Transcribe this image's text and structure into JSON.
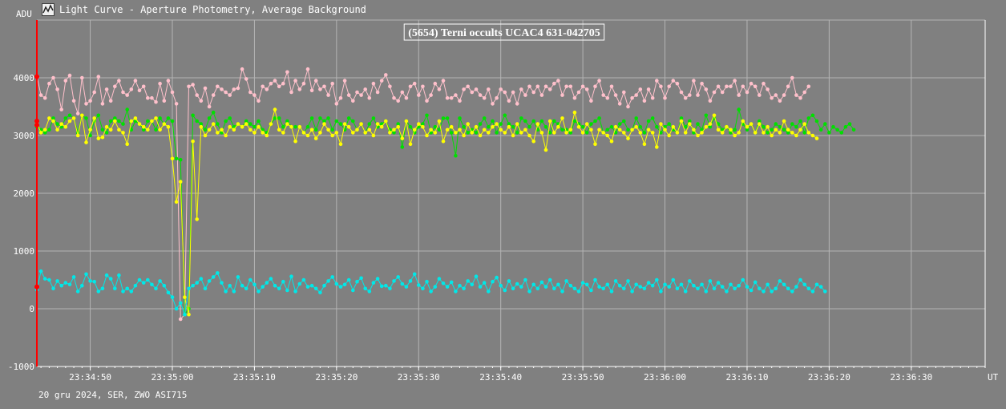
{
  "window": {
    "title": "Light Curve - Aperture Photometry, Average Background",
    "icon": "light-curve-app-icon"
  },
  "footer": {
    "text": "20 gru 2024, SER, ZWO ASI715"
  },
  "chart_data": {
    "type": "line",
    "title": "(5654) Terni occults UCAC4 631-042705",
    "ylabel": "ADU",
    "xlabel": "UT",
    "xlim": [
      "23:34:43.5",
      "23:36:39.0"
    ],
    "ylim": [
      -1000,
      5000
    ],
    "yticks": [
      -1000,
      0,
      1000,
      2000,
      3000,
      4000
    ],
    "xticks": [
      "23:34:50",
      "23:35:00",
      "23:35:10",
      "23:35:20",
      "23:35:30",
      "23:35:40",
      "23:35:50",
      "23:36:00",
      "23:36:10",
      "23:36:20",
      "23:36:30"
    ],
    "grid": true,
    "legend": "none",
    "frame_interval_s": 0.5,
    "start_time": "23:34:43.5",
    "colors": {
      "background": "#808080",
      "grid": "#b4b4b4",
      "marker_line": "#ff0000",
      "text": "#ffffff"
    },
    "series": [
      {
        "color": "#ffc0cb",
        "values": [
          4030,
          3700,
          3650,
          3900,
          4000,
          3800,
          3450,
          3950,
          4040,
          3600,
          3380,
          4000,
          3550,
          3600,
          3750,
          4020,
          3550,
          3800,
          3600,
          3850,
          3950,
          3750,
          3700,
          3800,
          3950,
          3780,
          3850,
          3650,
          3650,
          3580,
          3900,
          3600,
          3950,
          3750,
          3550,
          -180,
          -100,
          3850,
          3880,
          3700,
          3600,
          3820,
          3500,
          3700,
          3850,
          3800,
          3750,
          3700,
          3800,
          3820,
          4150,
          3980,
          3750,
          3700,
          3600,
          3850,
          3800,
          3900,
          3950,
          3850,
          3900,
          4100,
          3750,
          3950,
          3800,
          3900,
          4150,
          3780,
          3950,
          3800,
          3850,
          3700,
          3900,
          3550,
          3650,
          3950,
          3700,
          3600,
          3750,
          3700,
          3800,
          3650,
          3900,
          3750,
          3950,
          4050,
          3850,
          3650,
          3600,
          3750,
          3650,
          3850,
          3900,
          3700,
          3850,
          3600,
          3700,
          3900,
          3800,
          3950,
          3650,
          3650,
          3700,
          3600,
          3800,
          3850,
          3750,
          3800,
          3700,
          3650,
          3800,
          3550,
          3650,
          3800,
          3750,
          3600,
          3750,
          3550,
          3800,
          3700,
          3850,
          3750,
          3850,
          3700,
          3850,
          3800,
          3900,
          3950,
          3700,
          3850,
          3850,
          3650,
          3750,
          3850,
          3800,
          3600,
          3850,
          3950,
          3700,
          3650,
          3850,
          3700,
          3550,
          3750,
          3500,
          3650,
          3700,
          3800,
          3600,
          3800,
          3650,
          3950,
          3850,
          3650,
          3850,
          3950,
          3900,
          3750,
          3650,
          3700,
          3950,
          3700,
          3900,
          3800,
          3600,
          3750,
          3850,
          3750,
          3850,
          3850,
          3950,
          3700,
          3850,
          3750,
          3900,
          3850,
          3700,
          3900,
          3800,
          3650,
          3700,
          3600,
          3700,
          3850,
          4000,
          3700,
          3650,
          3750,
          3850
        ]
      },
      {
        "color": "#00e000",
        "values": [
          3150,
          3100,
          3050,
          3100,
          3300,
          3200,
          3150,
          3300,
          3350,
          3300,
          3050,
          3350,
          3300,
          3000,
          3250,
          3350,
          3100,
          3050,
          3250,
          3300,
          3250,
          3200,
          3450,
          3100,
          3250,
          3200,
          3100,
          3250,
          3250,
          3100,
          3300,
          3200,
          3300,
          3250,
          2600,
          2580,
          -100,
          0,
          3350,
          3250,
          3200,
          3100,
          3300,
          3400,
          3200,
          3050,
          3250,
          3300,
          3150,
          3200,
          3150,
          3250,
          3200,
          3150,
          3250,
          3100,
          3050,
          3200,
          3300,
          3300,
          3150,
          3250,
          3150,
          3150,
          3150,
          3050,
          3150,
          3300,
          3100,
          3300,
          3250,
          3300,
          3100,
          3250,
          3200,
          3100,
          3300,
          3250,
          3100,
          3200,
          3050,
          3200,
          3300,
          3150,
          3200,
          3250,
          3100,
          3050,
          3200,
          2800,
          3250,
          3150,
          3050,
          3150,
          3200,
          3350,
          3050,
          3150,
          3100,
          3300,
          3300,
          3050,
          2650,
          3300,
          3150,
          3050,
          3100,
          3050,
          3200,
          3300,
          3150,
          3250,
          3050,
          3200,
          3350,
          3200,
          3150,
          3050,
          3300,
          3250,
          3150,
          3250,
          3100,
          3250,
          3150,
          3050,
          3250,
          3200,
          3100,
          3100,
          3050,
          3250,
          3200,
          3150,
          3050,
          3200,
          3250,
          3300,
          3050,
          3100,
          3150,
          3050,
          3200,
          3250,
          3100,
          3100,
          3300,
          3150,
          3050,
          3250,
          3300,
          3150,
          3050,
          3150,
          3200,
          3100,
          3050,
          3300,
          3150,
          3250,
          3050,
          3200,
          3100,
          3350,
          3150,
          3300,
          3200,
          3100,
          3150,
          3050,
          3100,
          3450,
          3200,
          3100,
          3200,
          3050,
          3250,
          3150,
          3050,
          3100,
          3200,
          3150,
          3100,
          3050,
          3200,
          3150,
          3250,
          3050,
          3300,
          3350,
          3250,
          3100,
          3200,
          3050,
          3150,
          3100,
          3050,
          3150,
          3200,
          3100
        ]
      },
      {
        "color": "#ffff00",
        "values": [
          3220,
          3050,
          3100,
          3300,
          3250,
          3100,
          3200,
          3150,
          3250,
          3300,
          3000,
          3350,
          2880,
          3100,
          3300,
          2950,
          2970,
          3150,
          3100,
          3250,
          3100,
          3050,
          2850,
          3250,
          3300,
          3200,
          3150,
          3100,
          3250,
          3300,
          3100,
          3200,
          3150,
          2600,
          1850,
          2200,
          200,
          -100,
          2900,
          1550,
          3150,
          3000,
          3100,
          3200,
          3050,
          3100,
          3000,
          3150,
          3100,
          3200,
          3150,
          3200,
          3100,
          3050,
          3150,
          3050,
          3000,
          3200,
          3450,
          3100,
          3050,
          3200,
          3150,
          2900,
          3150,
          3050,
          3000,
          3100,
          2950,
          3050,
          3200,
          3100,
          3000,
          3050,
          2850,
          3200,
          3150,
          3050,
          3100,
          3200,
          3050,
          3100,
          3000,
          3200,
          3150,
          3250,
          3050,
          3100,
          3150,
          2950,
          3250,
          2850,
          3100,
          3200,
          3150,
          3000,
          3100,
          3050,
          3250,
          2900,
          3100,
          3150,
          3050,
          3100,
          3000,
          3200,
          3050,
          3150,
          3000,
          3100,
          3050,
          3150,
          3200,
          3100,
          3050,
          3150,
          3000,
          3200,
          3050,
          3100,
          3000,
          2900,
          3200,
          3050,
          2750,
          3250,
          3050,
          3150,
          3300,
          3050,
          3100,
          3400,
          3150,
          3050,
          3200,
          3100,
          2850,
          3100,
          3050,
          3000,
          2900,
          3150,
          3100,
          3050,
          2950,
          3100,
          3150,
          3050,
          2850,
          3100,
          3050,
          2800,
          3200,
          3100,
          3000,
          3150,
          3050,
          3250,
          3050,
          3200,
          3100,
          3000,
          3050,
          3150,
          3200,
          3350,
          3100,
          3050,
          3150,
          3100,
          3000,
          3050,
          3250,
          3150,
          3200,
          3050,
          3200,
          3050,
          3150,
          3000,
          3100,
          3050,
          3250,
          3100,
          3050,
          3000,
          3100,
          3200,
          3050,
          3000,
          2950
        ]
      },
      {
        "color": "#00e8e8",
        "values": [
          330,
          650,
          520,
          500,
          350,
          480,
          400,
          450,
          420,
          550,
          300,
          400,
          600,
          480,
          470,
          300,
          350,
          580,
          520,
          350,
          580,
          300,
          350,
          300,
          400,
          500,
          450,
          500,
          420,
          350,
          480,
          400,
          280,
          200,
          0,
          100,
          -100,
          350,
          400,
          450,
          520,
          350,
          480,
          550,
          620,
          450,
          300,
          400,
          300,
          550,
          400,
          350,
          500,
          420,
          300,
          380,
          450,
          520,
          400,
          350,
          470,
          320,
          560,
          300,
          430,
          500,
          380,
          400,
          350,
          280,
          400,
          480,
          550,
          430,
          380,
          420,
          500,
          320,
          470,
          530,
          350,
          300,
          450,
          520,
          390,
          400,
          350,
          480,
          550,
          430,
          380,
          480,
          600,
          410,
          350,
          470,
          300,
          380,
          520,
          440,
          380,
          460,
          300,
          400,
          350,
          480,
          420,
          560,
          380,
          450,
          300,
          470,
          540,
          400,
          320,
          480,
          350,
          430,
          380,
          500,
          300,
          420,
          350,
          460,
          380,
          500,
          350,
          420,
          300,
          480,
          400,
          350,
          300,
          450,
          420,
          320,
          500,
          380,
          350,
          420,
          300,
          480,
          400,
          350,
          480,
          300,
          420,
          380,
          350,
          450,
          400,
          500,
          300,
          420,
          380,
          500,
          350,
          420,
          300,
          480,
          400,
          350,
          420,
          300,
          480,
          350,
          450,
          380,
          300,
          420,
          350,
          400,
          500,
          380,
          320,
          460,
          350,
          300,
          420,
          300,
          350,
          480,
          420,
          350,
          300,
          380,
          500,
          420,
          350,
          300,
          420,
          380,
          300
        ]
      }
    ],
    "marker": {
      "x": "23:34:43.5",
      "color": "#ff0000",
      "points": [
        4020,
        3250,
        3180,
        380
      ]
    }
  }
}
